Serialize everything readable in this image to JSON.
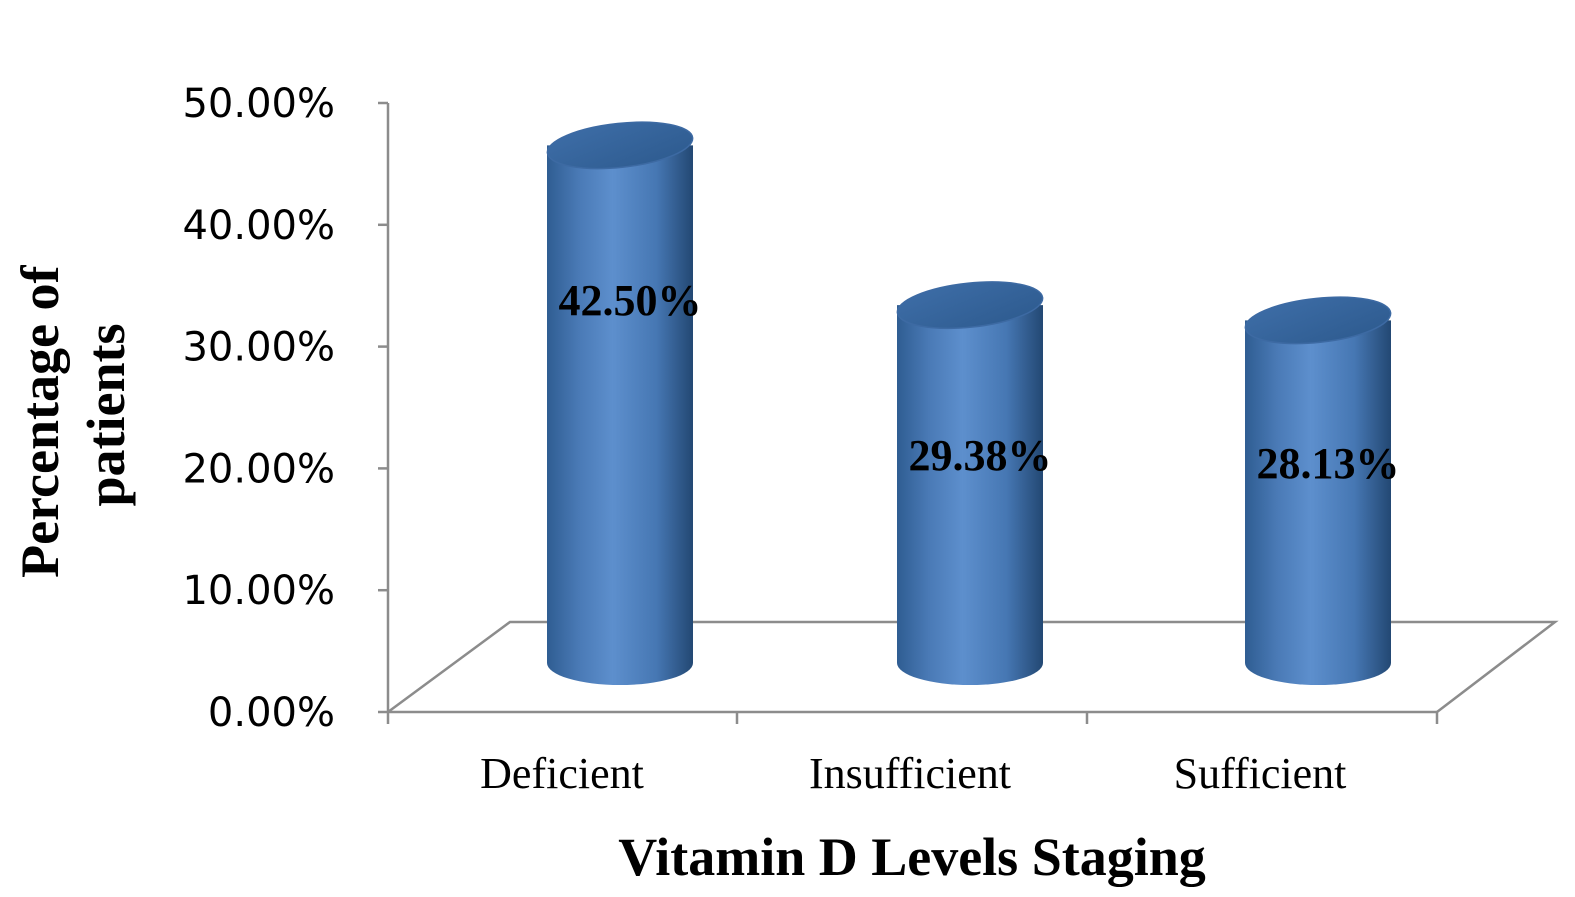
{
  "chart_data": {
    "type": "bar",
    "style": "3d-cylinder",
    "title": "",
    "xlabel": "Vitamin D Levels Staging",
    "ylabel": "Percentage of patients",
    "ylabel_lines": [
      "Percentage of",
      "patients"
    ],
    "categories": [
      "Deficient",
      "Insufficient",
      "Sufficient"
    ],
    "values": [
      42.5,
      29.38,
      28.13
    ],
    "data_labels": [
      "42.50%",
      "29.38%",
      "28.13%"
    ],
    "ylim": [
      0,
      50
    ],
    "yticks": [
      0,
      10,
      20,
      30,
      40,
      50
    ],
    "ytick_labels": [
      "0.00%",
      "10.00%",
      "20.00%",
      "30.00%",
      "40.00%",
      "50.00%"
    ],
    "grid": false,
    "legend": "none",
    "bar_color": "#4f81bd"
  }
}
